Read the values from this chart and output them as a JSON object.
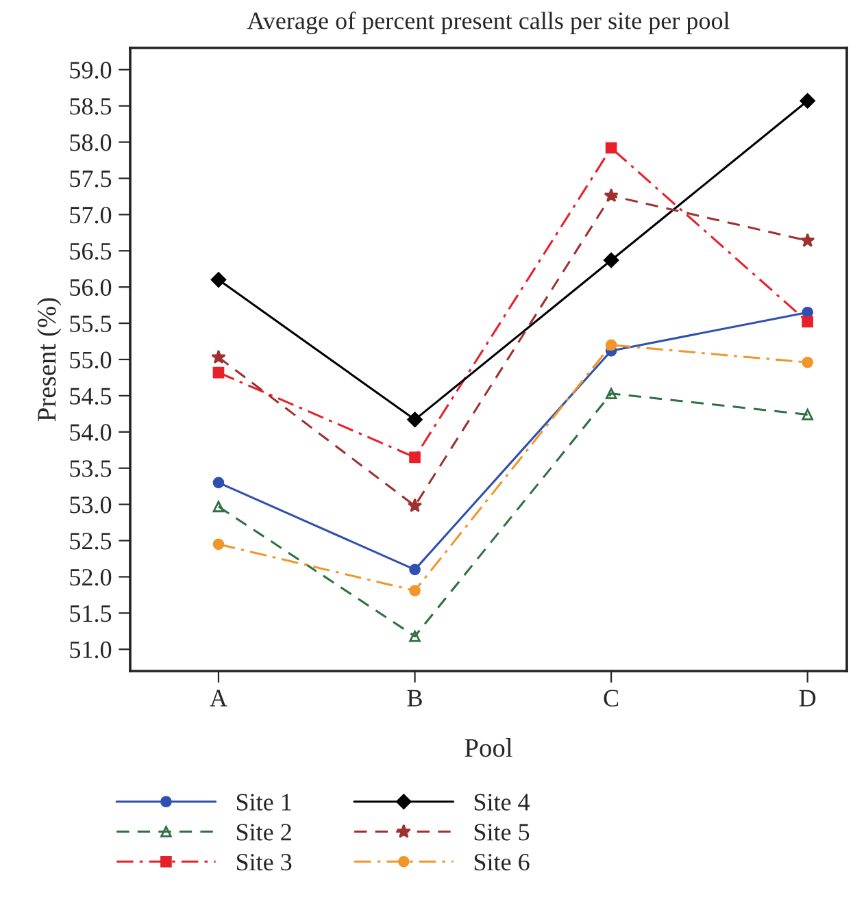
{
  "chart_data": {
    "type": "line",
    "title": "Average of percent present calls per site per pool",
    "xlabel": "Pool",
    "ylabel": "Present (%)",
    "categories": [
      "A",
      "B",
      "C",
      "D"
    ],
    "series": [
      {
        "name": "Site 1",
        "color": "#3050b0",
        "marker": "circle",
        "line_style": "solid",
        "values": [
          53.3,
          52.1,
          55.12,
          55.65
        ]
      },
      {
        "name": "Site 2",
        "color": "#2e7040",
        "marker": "triangle",
        "line_style": "dashed",
        "values": [
          52.97,
          51.18,
          54.53,
          54.24
        ]
      },
      {
        "name": "Site 3",
        "color": "#e8202a",
        "marker": "square",
        "line_style": "dashdot",
        "values": [
          54.82,
          53.65,
          57.92,
          55.52
        ]
      },
      {
        "name": "Site 4",
        "color": "#000000",
        "marker": "diamond",
        "line_style": "solid",
        "values": [
          56.1,
          54.17,
          56.37,
          58.57
        ]
      },
      {
        "name": "Site 5",
        "color": "#a03030",
        "marker": "star",
        "line_style": "dashed",
        "values": [
          55.03,
          52.98,
          57.26,
          56.64
        ]
      },
      {
        "name": "Site 6",
        "color": "#f0962a",
        "marker": "circle",
        "line_style": "dashdot",
        "values": [
          52.45,
          51.81,
          55.2,
          54.96
        ]
      }
    ],
    "ylim": [
      50.7,
      59.3
    ],
    "yticks": [
      {
        "value": 51,
        "label": "51.0"
      },
      {
        "value": 51.5,
        "label": "51.5"
      },
      {
        "value": 52,
        "label": "52.0"
      },
      {
        "value": 52.5,
        "label": "52.5"
      },
      {
        "value": 53,
        "label": "53.0"
      },
      {
        "value": 53.5,
        "label": "53.5"
      },
      {
        "value": 54,
        "label": "54.0"
      },
      {
        "value": 54.5,
        "label": "54.5"
      },
      {
        "value": 55,
        "label": "55.0"
      },
      {
        "value": 55.5,
        "label": "55.5"
      },
      {
        "value": 56,
        "label": "56.0"
      },
      {
        "value": 56.5,
        "label": "56.5"
      },
      {
        "value": 57,
        "label": "57.0"
      },
      {
        "value": 57.5,
        "label": "57.5"
      },
      {
        "value": 58,
        "label": "58.0"
      },
      {
        "value": 58.5,
        "label": "58.5"
      },
      {
        "value": 59,
        "label": "59.0"
      }
    ],
    "grid": false,
    "legend": "bottom"
  }
}
